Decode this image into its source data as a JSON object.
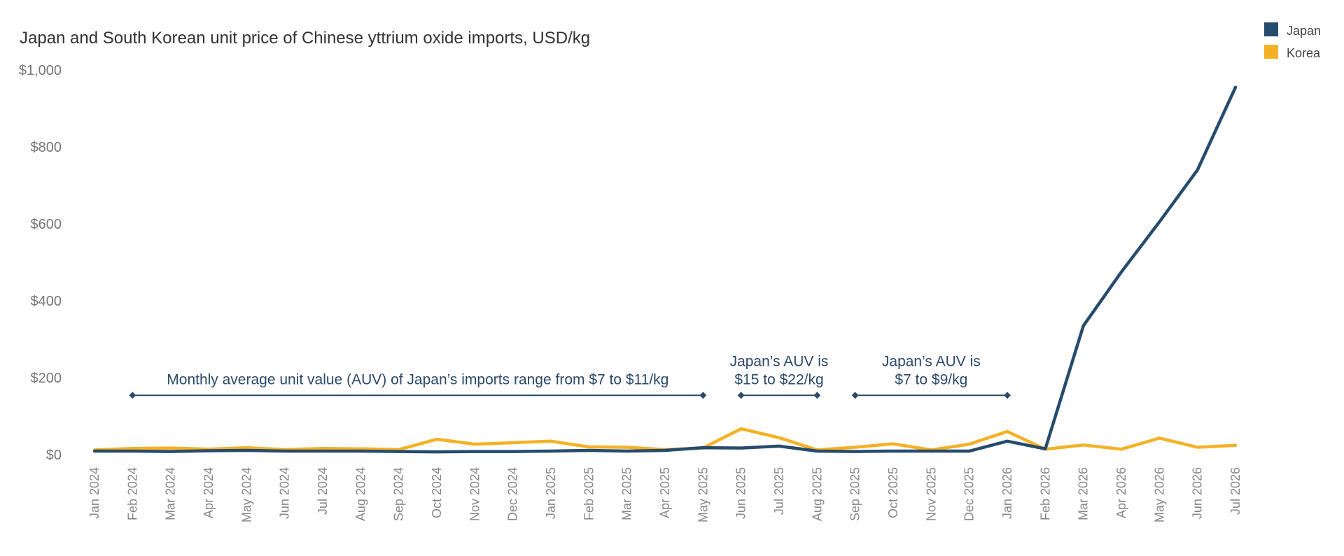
{
  "chart_data": {
    "type": "line",
    "title": "Japan and South Korean unit price of Chinese yttrium oxide imports, USD/kg",
    "xlabel": "",
    "ylabel": "",
    "ylim": [
      0,
      1000
    ],
    "y_ticks": [
      {
        "value": 0,
        "label": "$0"
      },
      {
        "value": 200,
        "label": "$200"
      },
      {
        "value": 400,
        "label": "$400"
      },
      {
        "value": 600,
        "label": "$600"
      },
      {
        "value": 800,
        "label": "$800"
      },
      {
        "value": 1000,
        "label": "$1,000"
      }
    ],
    "grid": false,
    "legend_position": "top-right",
    "categories": [
      "Jan 2024",
      "Feb 2024",
      "Mar 2024",
      "Apr 2024",
      "May 2024",
      "Jun 2024",
      "Jul 2024",
      "Aug 2024",
      "Sep 2024",
      "Oct 2024",
      "Nov 2024",
      "Dec 2024",
      "Jan 2025",
      "Feb 2025",
      "Mar 2025",
      "Apr 2025",
      "May 2025",
      "Jun 2025",
      "Jul 2025",
      "Aug 2025",
      "Sep 2025",
      "Oct 2025",
      "Nov 2025",
      "Dec 2025",
      "Jan 2026",
      "Feb 2026",
      "Mar 2026",
      "Apr 2026",
      "May 2026",
      "Jun 2026",
      "Jul 2026"
    ],
    "series": [
      {
        "name": "Japan",
        "color": "#264b6d",
        "values": [
          9,
          9,
          8,
          10,
          11,
          9,
          9,
          9,
          8,
          7,
          8,
          8,
          9,
          11,
          9,
          11,
          18,
          17,
          22,
          9,
          8,
          9,
          9,
          9,
          35,
          15,
          335,
          475,
          605,
          740,
          955
        ]
      },
      {
        "name": "Korea",
        "color": "#f5b125",
        "values": [
          12,
          16,
          17,
          14,
          18,
          13,
          16,
          15,
          13,
          40,
          27,
          31,
          35,
          20,
          19,
          13,
          17,
          67,
          44,
          12,
          19,
          28,
          12,
          27,
          60,
          14,
          25,
          14,
          43,
          19,
          24
        ]
      }
    ],
    "annotations": [
      {
        "lines": [
          "Monthly average unit value (AUV) of Japan’s imports range from $7 to $11/kg"
        ],
        "start": "Feb 2024",
        "end": "May 2025",
        "y": 154
      },
      {
        "lines": [
          "Japan’s AUV is",
          "$15 to $22/kg"
        ],
        "start": "Jun 2025",
        "end": "Aug 2025",
        "y": 154
      },
      {
        "lines": [
          "Japan’s AUV is",
          "$7 to $9/kg"
        ],
        "start": "Sep 2025",
        "end": "Jan 2026",
        "y": 154
      }
    ]
  }
}
